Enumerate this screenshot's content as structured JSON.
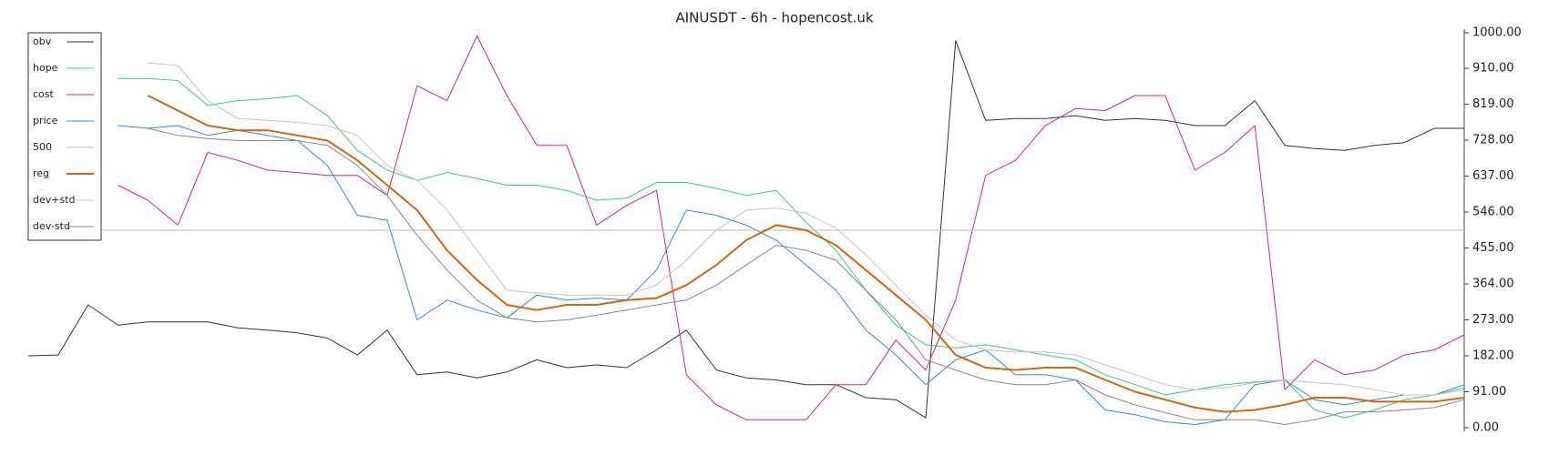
{
  "chart_data": {
    "type": "line",
    "title": "AINUSDT - 6h - hopencost.uk",
    "ylim": [
      0,
      1000
    ],
    "yticks": [
      {
        "value": 0,
        "label": "0.00"
      },
      {
        "value": 91,
        "label": "91.00"
      },
      {
        "value": 182,
        "label": "182.00"
      },
      {
        "value": 273,
        "label": "273.00"
      },
      {
        "value": 364,
        "label": "364.00"
      },
      {
        "value": 455,
        "label": "455.00"
      },
      {
        "value": 546,
        "label": "546.00"
      },
      {
        "value": 637,
        "label": "637.00"
      },
      {
        "value": 728,
        "label": "728.00"
      },
      {
        "value": 819,
        "label": "819.00"
      },
      {
        "value": 910,
        "label": "910.00"
      },
      {
        "value": 1000,
        "label": "1000.00"
      }
    ],
    "legend": "upper left",
    "series": [
      {
        "name": "obv",
        "color": "#333333",
        "width": 1,
        "values": [
          182,
          184,
          311,
          260,
          268,
          268,
          268,
          253,
          247,
          240,
          227,
          184,
          247,
          134,
          141,
          126,
          141,
          172,
          152,
          159,
          152,
          197,
          247,
          146,
          126,
          121,
          109,
          109,
          76,
          71,
          25,
          980,
          778,
          783,
          783,
          790,
          778,
          783,
          778,
          765,
          765,
          828,
          715,
          707,
          702,
          715,
          722,
          758,
          758
        ]
      },
      {
        "name": "hope",
        "color": "#2ed47a",
        "width": 1,
        "values": [
          null,
          null,
          null,
          884,
          884,
          879,
          816,
          828,
          833,
          841,
          790,
          702,
          652,
          626,
          646,
          631,
          614,
          614,
          601,
          576,
          581,
          621,
          621,
          606,
          588,
          601,
          520,
          449,
          348,
          260,
          210,
          202,
          210,
          197,
          184,
          172,
          134,
          109,
          83,
          96,
          109,
          116,
          121,
          45,
          25,
          45,
          71,
          83,
          101
        ]
      },
      {
        "name": "cost",
        "color": "#e0218a",
        "width": 1,
        "values": [
          null,
          null,
          null,
          614,
          576,
          513,
          697,
          677,
          652,
          646,
          639,
          639,
          588,
          866,
          828,
          992,
          841,
          715,
          715,
          513,
          563,
          601,
          134,
          58,
          20,
          20,
          20,
          109,
          109,
          222,
          146,
          323,
          639,
          677,
          765,
          808,
          803,
          841,
          841,
          652,
          697,
          765,
          96,
          172,
          134,
          146,
          184,
          197,
          235
        ]
      },
      {
        "name": "price",
        "color": "#2b8fd8",
        "width": 1,
        "values": [
          null,
          null,
          null,
          765,
          758,
          765,
          740,
          753,
          740,
          727,
          664,
          538,
          525,
          273,
          323,
          298,
          278,
          336,
          323,
          328,
          323,
          399,
          551,
          538,
          513,
          475,
          412,
          348,
          247,
          184,
          109,
          172,
          197,
          134,
          134,
          121,
          45,
          33,
          15,
          8,
          20,
          109,
          121,
          71,
          58,
          71,
          83,
          83,
          109
        ]
      },
      {
        "name": "500",
        "color": "#bbbbbb",
        "width": 1,
        "values": [
          500,
          500,
          500,
          500,
          500,
          500,
          500,
          500,
          500,
          500,
          500,
          500,
          500,
          500,
          500,
          500,
          500,
          500,
          500,
          500,
          500,
          500,
          500,
          500,
          500,
          500,
          500,
          500,
          500,
          500,
          500,
          500,
          500,
          500,
          500,
          500,
          500,
          500,
          500,
          500,
          500,
          500,
          500,
          500,
          500,
          500,
          500,
          500,
          500
        ]
      },
      {
        "name": "reg",
        "color": "#d9640b",
        "width": 2,
        "values": [
          null,
          null,
          null,
          null,
          841,
          803,
          765,
          753,
          753,
          740,
          727,
          677,
          614,
          551,
          449,
          374,
          311,
          298,
          311,
          311,
          323,
          328,
          361,
          412,
          475,
          513,
          500,
          462,
          399,
          336,
          273,
          184,
          152,
          146,
          152,
          152,
          121,
          91,
          71,
          51,
          40,
          45,
          58,
          76,
          76,
          66,
          66,
          66,
          76
        ]
      },
      {
        "name": "dev+std",
        "color": "#c4c4c4",
        "width": 1,
        "values": [
          null,
          null,
          null,
          null,
          924,
          917,
          828,
          783,
          778,
          773,
          765,
          740,
          664,
          626,
          551,
          449,
          348,
          341,
          336,
          336,
          336,
          361,
          424,
          500,
          551,
          556,
          543,
          505,
          437,
          361,
          285,
          222,
          197,
          192,
          192,
          184,
          159,
          134,
          109,
          96,
          101,
          114,
          121,
          114,
          109,
          96,
          83,
          83,
          96
        ]
      },
      {
        "name": "dev-std",
        "color": "#888888",
        "width": 1,
        "values": [
          null,
          null,
          null,
          null,
          758,
          740,
          732,
          727,
          727,
          727,
          715,
          664,
          588,
          487,
          399,
          323,
          278,
          268,
          273,
          285,
          298,
          311,
          323,
          361,
          412,
          462,
          449,
          424,
          348,
          273,
          172,
          146,
          121,
          109,
          109,
          121,
          83,
          58,
          38,
          20,
          20,
          20,
          8,
          20,
          40,
          40,
          45,
          51,
          71
        ]
      }
    ]
  }
}
